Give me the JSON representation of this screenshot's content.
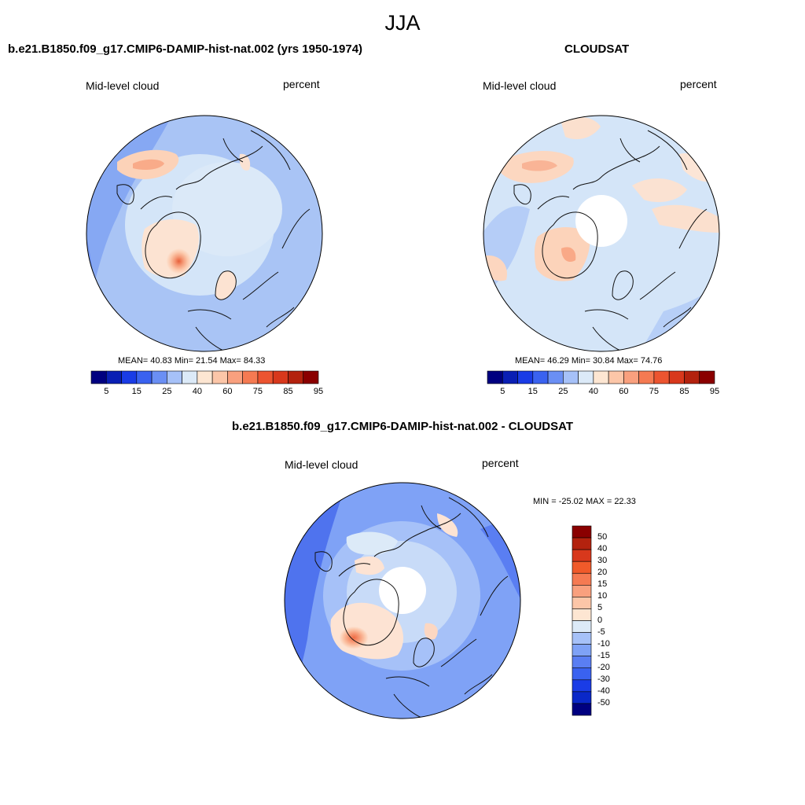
{
  "figure": {
    "season": "JJA",
    "panel_model": {
      "title": "b.e21.B1850.f09_g17.CMIP6-DAMIP-hist-nat.002 (yrs 1950-1974)",
      "left_label": "Mid-level cloud",
      "right_label": "percent",
      "stats": "MEAN=  40.83  Min=  21.54  Max=  84.33"
    },
    "panel_obs": {
      "title": "CLOUDSAT",
      "left_label": "Mid-level cloud",
      "right_label": "percent",
      "stats": "MEAN=  46.29  Min=  30.84  Max=  74.76"
    },
    "panel_diff": {
      "title": "b.e21.B1850.f09_g17.CMIP6-DAMIP-hist-nat.002 - CLOUDSAT",
      "left_label": "Mid-level cloud",
      "right_label": "percent",
      "stats": "MIN = -25.02 MAX =  22.33"
    }
  },
  "colorbars": {
    "abs": {
      "labels": [
        "5",
        "15",
        "25",
        "40",
        "60",
        "75",
        "85",
        "95"
      ],
      "colors": [
        "#000080",
        "#0a1fb4",
        "#1a3ce6",
        "#3a62f0",
        "#6a8ff4",
        "#a6c1f8",
        "#dceaf8",
        "#fde6d2",
        "#fcc6a8",
        "#f9a07e",
        "#f57a52",
        "#ec5430",
        "#d8381c",
        "#b3220e",
        "#8a0000"
      ]
    },
    "diff": {
      "labels": [
        "50",
        "40",
        "30",
        "20",
        "15",
        "10",
        "5",
        "0",
        "-5",
        "-10",
        "-15",
        "-20",
        "-30",
        "-40",
        "-50"
      ],
      "colors": [
        "#8a0000",
        "#b3220e",
        "#d8381c",
        "#f05a2a",
        "#f57a52",
        "#f9a07e",
        "#fcc6a8",
        "#fde6d2",
        "#dceaf8",
        "#a6c1f8",
        "#7fa2f6",
        "#5a7ef2",
        "#3a62f0",
        "#1a3ce6",
        "#0a28c8",
        "#000080"
      ]
    }
  },
  "map_data": {
    "projection": "north polar stereographic",
    "variable": "Mid-level cloud",
    "units": "percent",
    "features": [
      "Greenland warm anomaly",
      "Siberia warm anomaly",
      "missing data near pole (CLOUDSAT)"
    ]
  }
}
